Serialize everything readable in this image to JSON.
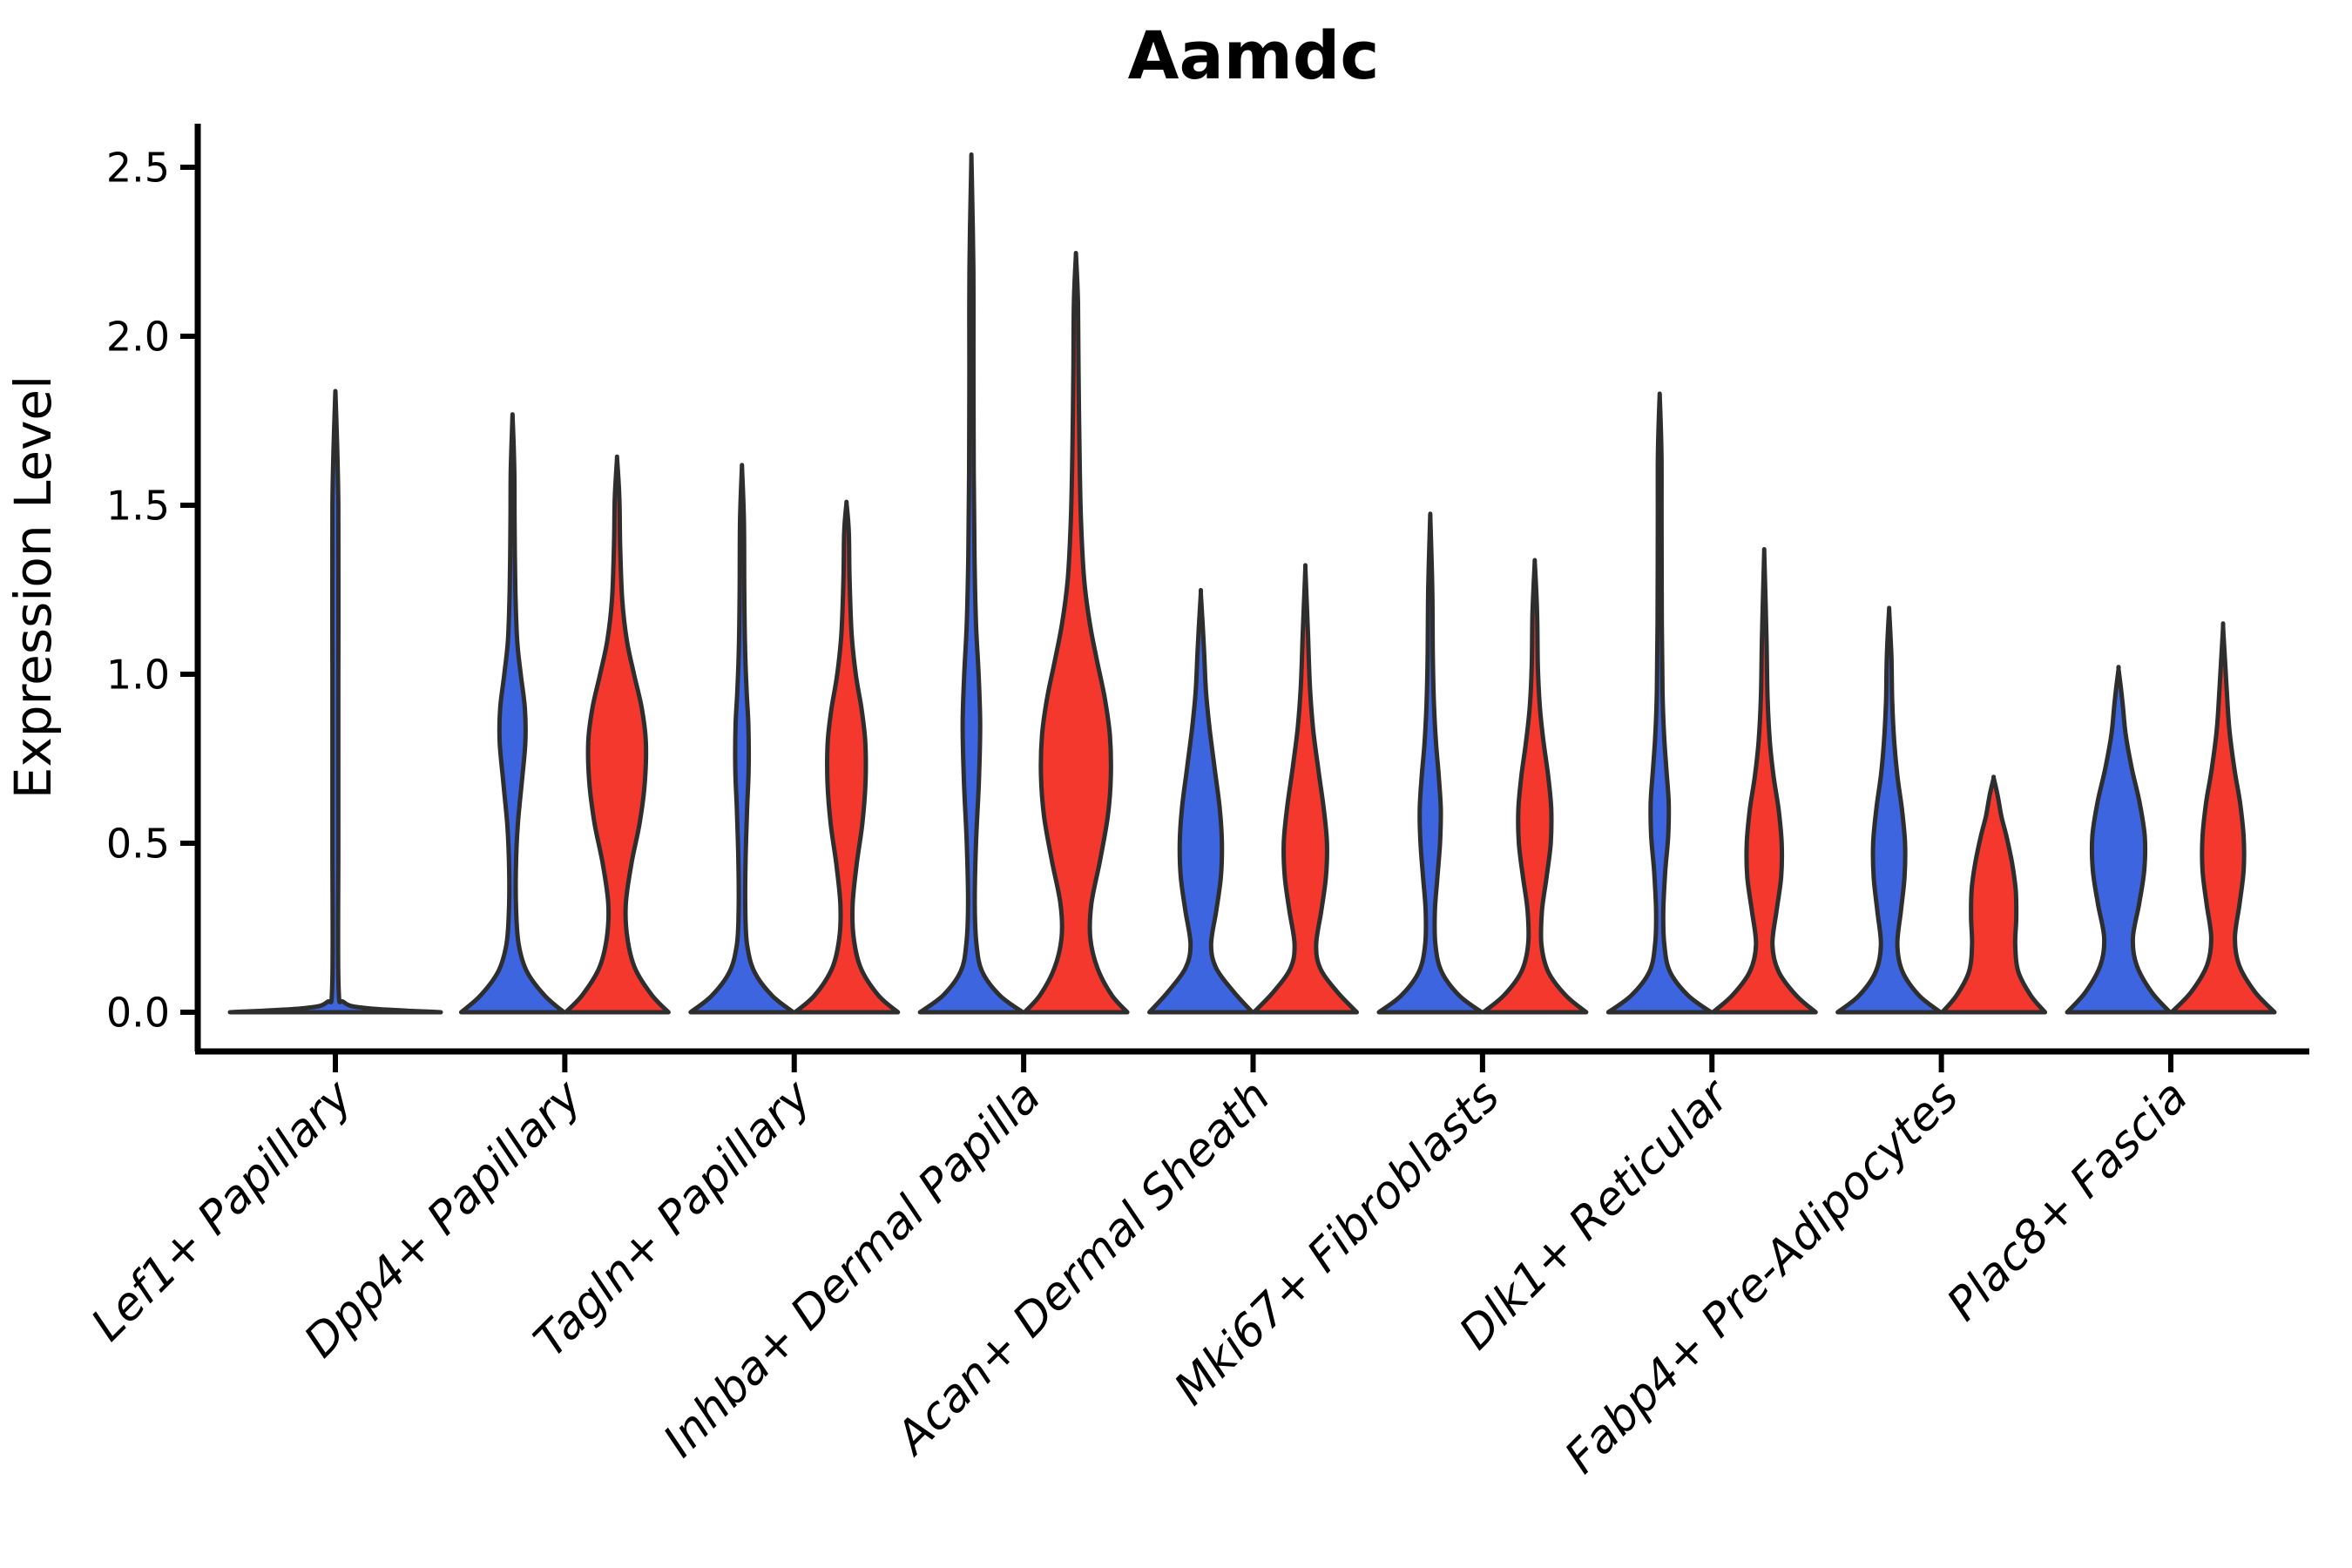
{
  "chart_data": {
    "type": "violin",
    "title": "Aamdc",
    "ylabel": "Expression Level",
    "xlabel": "",
    "ylim": [
      0,
      2.6
    ],
    "yticks": [
      0.0,
      0.5,
      1.0,
      1.5,
      2.0,
      2.5
    ],
    "grid": false,
    "legend_position": "none",
    "categories": [
      "Lef1+ Papillary",
      "Dpp4+ Papillary",
      "Tagln+ Papillary",
      "Inhba+ Dermal Papilla",
      "Acan+ Dermal Sheath",
      "Mki67+ Fibroblasts",
      "Dlk1+ Reticular",
      "Fabp4+ Pre-Adipocytes",
      "Plac8+ Fascia"
    ],
    "groups": [
      {
        "name": "blue",
        "color": "#3D65E0"
      },
      {
        "name": "red",
        "color": "#F4382E"
      }
    ],
    "outline_color": "#2E2E2E",
    "axis_color": "#000000",
    "violins": [
      {
        "category": "Lef1+ Papillary",
        "group": "single",
        "max": 1.8,
        "profile": [
          [
            0,
            1.0
          ],
          [
            0.012,
            0.3
          ],
          [
            0.03,
            0.08
          ],
          [
            0.08,
            0.03
          ],
          [
            0.5,
            0.028
          ],
          [
            1.0,
            0.028
          ],
          [
            1.5,
            0.028
          ],
          [
            1.8,
            0.004
          ]
        ]
      },
      {
        "category": "Dpp4+ Papillary",
        "group": "blue",
        "max": 1.75,
        "profile": [
          [
            0,
            1.0
          ],
          [
            0.05,
            0.62
          ],
          [
            0.12,
            0.28
          ],
          [
            0.2,
            0.12
          ],
          [
            0.3,
            0.07
          ],
          [
            0.42,
            0.065
          ],
          [
            0.55,
            0.1
          ],
          [
            0.68,
            0.18
          ],
          [
            0.8,
            0.25
          ],
          [
            0.9,
            0.24
          ],
          [
            1.0,
            0.16
          ],
          [
            1.1,
            0.09
          ],
          [
            1.25,
            0.055
          ],
          [
            1.45,
            0.04
          ],
          [
            1.6,
            0.035
          ],
          [
            1.75,
            0.004
          ]
        ]
      },
      {
        "category": "Dpp4+ Papillary",
        "group": "red",
        "max": 1.63,
        "profile": [
          [
            0,
            1.0
          ],
          [
            0.05,
            0.68
          ],
          [
            0.13,
            0.35
          ],
          [
            0.22,
            0.2
          ],
          [
            0.32,
            0.17
          ],
          [
            0.44,
            0.28
          ],
          [
            0.56,
            0.44
          ],
          [
            0.68,
            0.54
          ],
          [
            0.8,
            0.56
          ],
          [
            0.9,
            0.48
          ],
          [
            1.0,
            0.33
          ],
          [
            1.1,
            0.19
          ],
          [
            1.22,
            0.1
          ],
          [
            1.38,
            0.06
          ],
          [
            1.52,
            0.045
          ],
          [
            1.63,
            0.004
          ]
        ]
      },
      {
        "category": "Tagln+ Papillary",
        "group": "blue",
        "max": 1.6,
        "profile": [
          [
            0,
            1.0
          ],
          [
            0.05,
            0.58
          ],
          [
            0.12,
            0.24
          ],
          [
            0.2,
            0.1
          ],
          [
            0.3,
            0.065
          ],
          [
            0.45,
            0.07
          ],
          [
            0.6,
            0.1
          ],
          [
            0.72,
            0.13
          ],
          [
            0.85,
            0.125
          ],
          [
            0.95,
            0.09
          ],
          [
            1.08,
            0.06
          ],
          [
            1.25,
            0.045
          ],
          [
            1.45,
            0.038
          ],
          [
            1.6,
            0.004
          ]
        ]
      },
      {
        "category": "Tagln+ Papillary",
        "group": "red",
        "max": 1.5,
        "profile": [
          [
            0,
            1.0
          ],
          [
            0.05,
            0.62
          ],
          [
            0.13,
            0.28
          ],
          [
            0.22,
            0.14
          ],
          [
            0.32,
            0.12
          ],
          [
            0.44,
            0.2
          ],
          [
            0.56,
            0.31
          ],
          [
            0.68,
            0.37
          ],
          [
            0.8,
            0.365
          ],
          [
            0.9,
            0.29
          ],
          [
            1.0,
            0.18
          ],
          [
            1.12,
            0.1
          ],
          [
            1.28,
            0.06
          ],
          [
            1.42,
            0.045
          ],
          [
            1.5,
            0.004
          ]
        ]
      },
      {
        "category": "Inhba+ Dermal Papilla",
        "group": "blue",
        "max": 2.5,
        "profile": [
          [
            0,
            1.0
          ],
          [
            0.05,
            0.55
          ],
          [
            0.12,
            0.21
          ],
          [
            0.2,
            0.1
          ],
          [
            0.32,
            0.065
          ],
          [
            0.5,
            0.09
          ],
          [
            0.68,
            0.145
          ],
          [
            0.85,
            0.17
          ],
          [
            1.0,
            0.14
          ],
          [
            1.15,
            0.09
          ],
          [
            1.35,
            0.06
          ],
          [
            1.6,
            0.045
          ],
          [
            1.9,
            0.04
          ],
          [
            2.2,
            0.038
          ],
          [
            2.5,
            0.004
          ]
        ]
      },
      {
        "category": "Inhba+ Dermal Papilla",
        "group": "red",
        "max": 2.23,
        "profile": [
          [
            0,
            1.0
          ],
          [
            0.05,
            0.7
          ],
          [
            0.13,
            0.42
          ],
          [
            0.22,
            0.28
          ],
          [
            0.32,
            0.3
          ],
          [
            0.45,
            0.47
          ],
          [
            0.58,
            0.62
          ],
          [
            0.7,
            0.68
          ],
          [
            0.82,
            0.66
          ],
          [
            0.93,
            0.56
          ],
          [
            1.04,
            0.41
          ],
          [
            1.15,
            0.27
          ],
          [
            1.28,
            0.16
          ],
          [
            1.45,
            0.1
          ],
          [
            1.65,
            0.07
          ],
          [
            1.9,
            0.05
          ],
          [
            2.1,
            0.04
          ],
          [
            2.23,
            0.004
          ]
        ]
      },
      {
        "category": "Acan+ Dermal Sheath",
        "group": "blue",
        "max": 1.23,
        "profile": [
          [
            0,
            1.0
          ],
          [
            0.06,
            0.64
          ],
          [
            0.13,
            0.3
          ],
          [
            0.2,
            0.2
          ],
          [
            0.3,
            0.3
          ],
          [
            0.4,
            0.39
          ],
          [
            0.5,
            0.41
          ],
          [
            0.6,
            0.37
          ],
          [
            0.72,
            0.27
          ],
          [
            0.84,
            0.17
          ],
          [
            0.95,
            0.1
          ],
          [
            1.08,
            0.06
          ],
          [
            1.23,
            0.004
          ]
        ]
      },
      {
        "category": "Acan+ Dermal Sheath",
        "group": "red",
        "max": 1.3,
        "profile": [
          [
            0,
            1.0
          ],
          [
            0.06,
            0.62
          ],
          [
            0.13,
            0.29
          ],
          [
            0.2,
            0.21
          ],
          [
            0.3,
            0.31
          ],
          [
            0.4,
            0.4
          ],
          [
            0.5,
            0.42
          ],
          [
            0.6,
            0.36
          ],
          [
            0.72,
            0.25
          ],
          [
            0.84,
            0.15
          ],
          [
            0.96,
            0.09
          ],
          [
            1.12,
            0.05
          ],
          [
            1.3,
            0.004
          ]
        ]
      },
      {
        "category": "Mki67+ Fibroblasts",
        "group": "blue",
        "max": 1.45,
        "profile": [
          [
            0,
            1.0
          ],
          [
            0.05,
            0.56
          ],
          [
            0.12,
            0.22
          ],
          [
            0.2,
            0.1
          ],
          [
            0.3,
            0.09
          ],
          [
            0.4,
            0.14
          ],
          [
            0.5,
            0.19
          ],
          [
            0.6,
            0.205
          ],
          [
            0.7,
            0.165
          ],
          [
            0.8,
            0.11
          ],
          [
            0.92,
            0.07
          ],
          [
            1.06,
            0.05
          ],
          [
            1.25,
            0.04
          ],
          [
            1.45,
            0.004
          ]
        ]
      },
      {
        "category": "Mki67+ Fibroblasts",
        "group": "red",
        "max": 1.32,
        "profile": [
          [
            0,
            1.0
          ],
          [
            0.05,
            0.6
          ],
          [
            0.12,
            0.26
          ],
          [
            0.2,
            0.13
          ],
          [
            0.3,
            0.14
          ],
          [
            0.4,
            0.23
          ],
          [
            0.5,
            0.31
          ],
          [
            0.6,
            0.32
          ],
          [
            0.7,
            0.26
          ],
          [
            0.8,
            0.17
          ],
          [
            0.9,
            0.1
          ],
          [
            1.02,
            0.06
          ],
          [
            1.18,
            0.045
          ],
          [
            1.32,
            0.004
          ]
        ]
      },
      {
        "category": "Dlk1+ Reticular",
        "group": "blue",
        "max": 1.81,
        "profile": [
          [
            0,
            1.0
          ],
          [
            0.05,
            0.55
          ],
          [
            0.12,
            0.2
          ],
          [
            0.2,
            0.09
          ],
          [
            0.3,
            0.07
          ],
          [
            0.42,
            0.11
          ],
          [
            0.52,
            0.165
          ],
          [
            0.62,
            0.175
          ],
          [
            0.72,
            0.13
          ],
          [
            0.82,
            0.085
          ],
          [
            0.95,
            0.055
          ],
          [
            1.15,
            0.042
          ],
          [
            1.45,
            0.036
          ],
          [
            1.65,
            0.034
          ],
          [
            1.81,
            0.004
          ]
        ]
      },
      {
        "category": "Dlk1+ Reticular",
        "group": "red",
        "max": 1.34,
        "profile": [
          [
            0,
            1.0
          ],
          [
            0.05,
            0.62
          ],
          [
            0.12,
            0.28
          ],
          [
            0.2,
            0.16
          ],
          [
            0.3,
            0.24
          ],
          [
            0.4,
            0.33
          ],
          [
            0.5,
            0.34
          ],
          [
            0.6,
            0.28
          ],
          [
            0.7,
            0.18
          ],
          [
            0.8,
            0.11
          ],
          [
            0.93,
            0.065
          ],
          [
            1.1,
            0.045
          ],
          [
            1.34,
            0.004
          ]
        ]
      },
      {
        "category": "Fabp4+ Pre-Adipocytes",
        "group": "blue",
        "max": 1.18,
        "profile": [
          [
            0,
            1.0
          ],
          [
            0.05,
            0.58
          ],
          [
            0.12,
            0.26
          ],
          [
            0.2,
            0.16
          ],
          [
            0.3,
            0.23
          ],
          [
            0.4,
            0.3
          ],
          [
            0.5,
            0.31
          ],
          [
            0.6,
            0.25
          ],
          [
            0.7,
            0.16
          ],
          [
            0.8,
            0.1
          ],
          [
            0.92,
            0.06
          ],
          [
            1.05,
            0.045
          ],
          [
            1.18,
            0.004
          ]
        ]
      },
      {
        "category": "Fabp4+ Pre-Adipocytes",
        "group": "red",
        "max": 0.69,
        "profile": [
          [
            0,
            1.0
          ],
          [
            0.05,
            0.72
          ],
          [
            0.12,
            0.48
          ],
          [
            0.2,
            0.42
          ],
          [
            0.28,
            0.44
          ],
          [
            0.36,
            0.43
          ],
          [
            0.44,
            0.36
          ],
          [
            0.52,
            0.25
          ],
          [
            0.58,
            0.15
          ],
          [
            0.64,
            0.08
          ],
          [
            0.69,
            0.004
          ]
        ]
      },
      {
        "category": "Plac8+ Fascia",
        "group": "blue",
        "max": 1.01,
        "profile": [
          [
            0,
            1.0
          ],
          [
            0.06,
            0.64
          ],
          [
            0.14,
            0.35
          ],
          [
            0.22,
            0.28
          ],
          [
            0.32,
            0.4
          ],
          [
            0.42,
            0.5
          ],
          [
            0.52,
            0.51
          ],
          [
            0.62,
            0.41
          ],
          [
            0.72,
            0.26
          ],
          [
            0.82,
            0.14
          ],
          [
            0.92,
            0.075
          ],
          [
            1.01,
            0.004
          ]
        ]
      },
      {
        "category": "Plac8+ Fascia",
        "group": "red",
        "max": 1.13,
        "profile": [
          [
            0,
            1.0
          ],
          [
            0.06,
            0.62
          ],
          [
            0.14,
            0.31
          ],
          [
            0.22,
            0.23
          ],
          [
            0.32,
            0.32
          ],
          [
            0.42,
            0.4
          ],
          [
            0.52,
            0.4
          ],
          [
            0.62,
            0.33
          ],
          [
            0.72,
            0.22
          ],
          [
            0.84,
            0.12
          ],
          [
            0.97,
            0.065
          ],
          [
            1.13,
            0.004
          ]
        ]
      }
    ]
  }
}
